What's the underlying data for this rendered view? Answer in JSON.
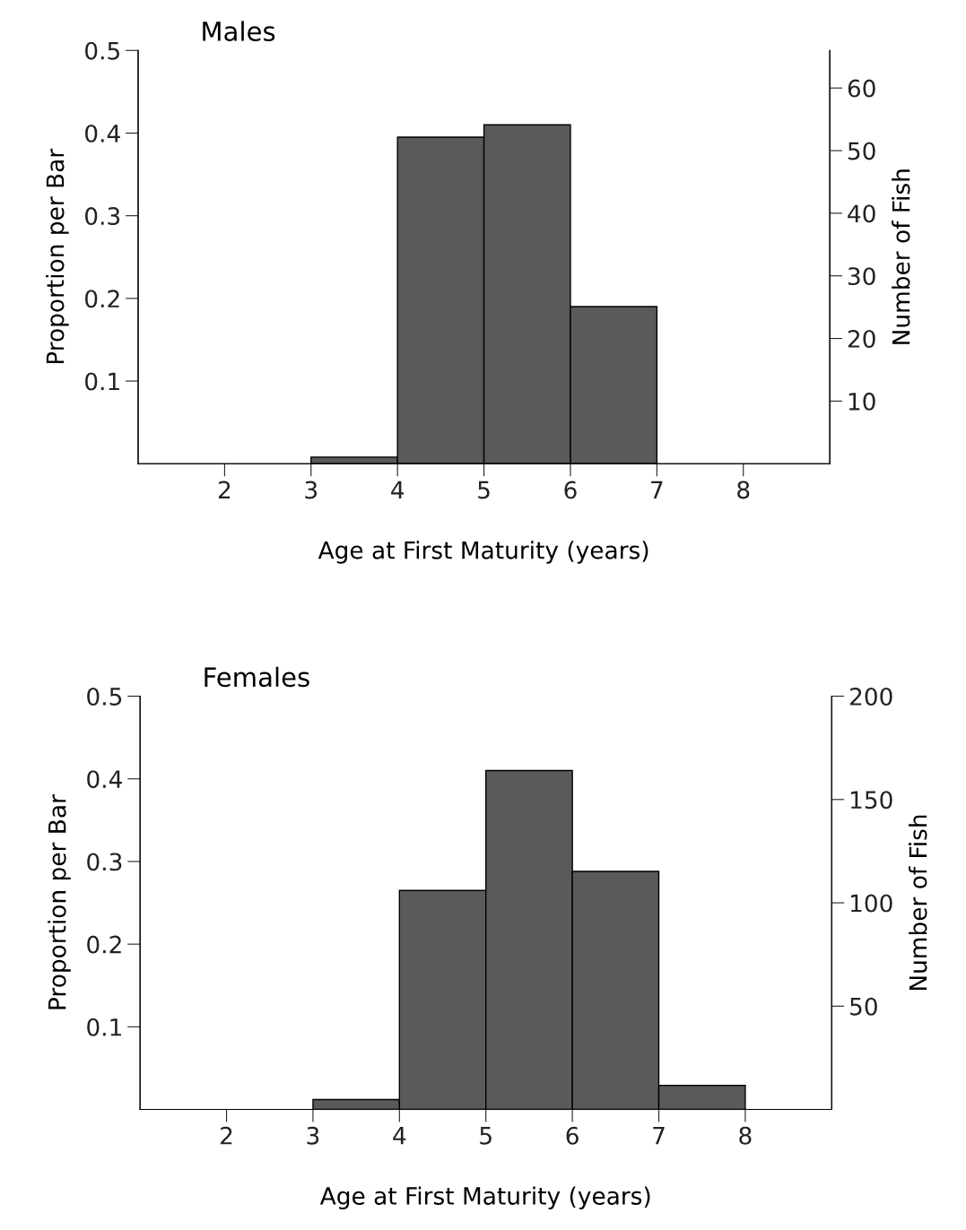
{
  "chart_data": [
    {
      "type": "histogram",
      "title": "Males",
      "xlabel": "Age at First Maturity (years)",
      "ylabel": "Proportion per Bar",
      "y2label": "Number of Fish",
      "bins": [
        3,
        4,
        5,
        6,
        7
      ],
      "values": [
        0.008,
        0.395,
        0.41,
        0.19
      ],
      "color": "#5a5a5a",
      "xlim": [
        1,
        9
      ],
      "xticks": [
        2,
        3,
        4,
        5,
        6,
        7,
        8
      ],
      "ylim": [
        0,
        0.5
      ],
      "yticks": [
        0.1,
        0.2,
        0.3,
        0.4,
        0.5
      ],
      "y2lim": [
        0,
        66
      ],
      "y2ticks": [
        10,
        20,
        30,
        40,
        50,
        60
      ],
      "grid": false
    },
    {
      "type": "histogram",
      "title": "Females",
      "xlabel": "Age at First Maturity (years)",
      "ylabel": "Proportion per Bar",
      "y2label": "Number of Fish",
      "bins": [
        3,
        4,
        5,
        6,
        7,
        8
      ],
      "values": [
        0.012,
        0.265,
        0.41,
        0.288,
        0.029
      ],
      "color": "#5a5a5a",
      "xlim": [
        1,
        9
      ],
      "xticks": [
        2,
        3,
        4,
        5,
        6,
        7,
        8
      ],
      "ylim": [
        0,
        0.5
      ],
      "yticks": [
        0.1,
        0.2,
        0.3,
        0.4,
        0.5
      ],
      "y2lim": [
        0,
        200
      ],
      "y2ticks": [
        50,
        100,
        150,
        200
      ],
      "grid": false
    }
  ]
}
